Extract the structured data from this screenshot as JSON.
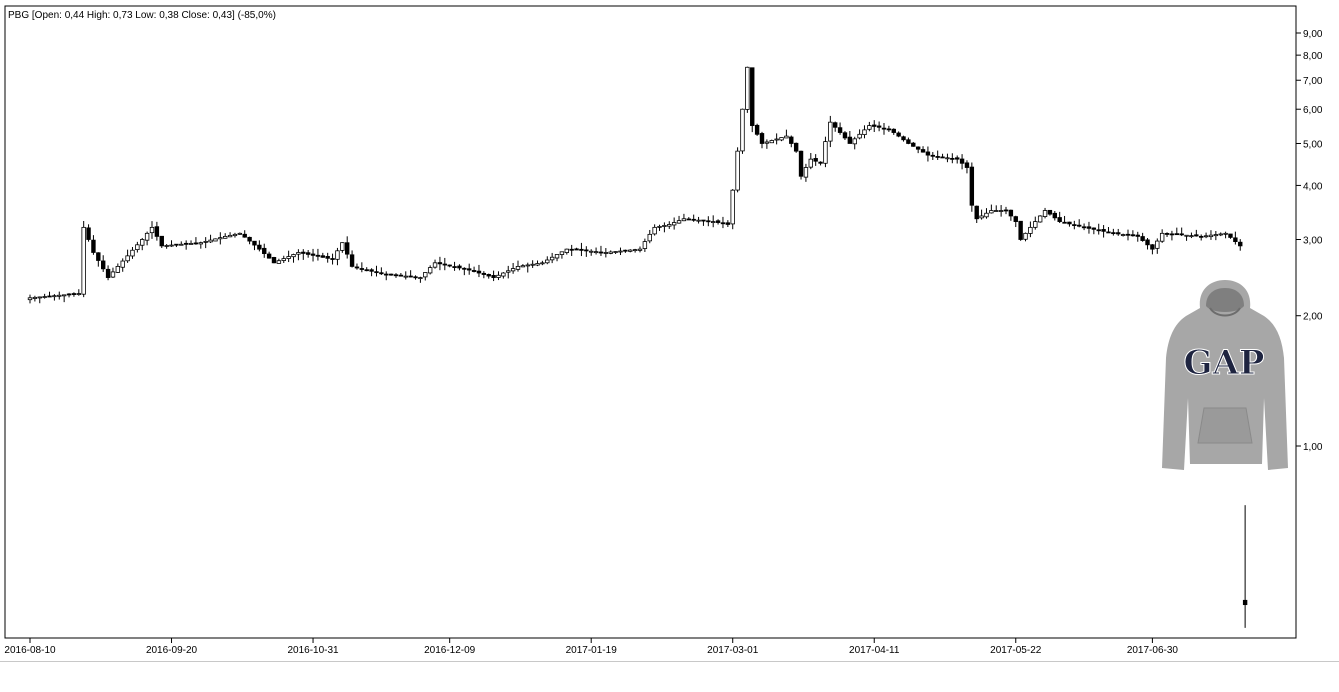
{
  "chart_data": {
    "type": "candlestick",
    "title": "PBG [Open: 0,44  High: 0,73  Low: 0,38  Close: 0,43] (-85,0%)",
    "y_scale": "log",
    "ylim": [
      0.38,
      10.2
    ],
    "y_ticks": [
      {
        "value": 9,
        "label": "9,00"
      },
      {
        "value": 8,
        "label": "8,00"
      },
      {
        "value": 7,
        "label": "7,00"
      },
      {
        "value": 6,
        "label": "6,00"
      },
      {
        "value": 5,
        "label": "5,00"
      },
      {
        "value": 4,
        "label": "4,00"
      },
      {
        "value": 3,
        "label": "3,00"
      },
      {
        "value": 2,
        "label": "2,00"
      },
      {
        "value": 1,
        "label": "1,00"
      }
    ],
    "x_ticks": [
      "2016-08-10",
      "2016-09-20",
      "2016-10-31",
      "2016-12-09",
      "2017-01-19",
      "2017-03-01",
      "2017-04-11",
      "2017-05-22",
      "2017-06-30"
    ],
    "x_tick_index": [
      0,
      29,
      58,
      86,
      115,
      144,
      173,
      202,
      230
    ],
    "legend": "none",
    "grid": false,
    "image": {
      "name": "gap-hoodie-image",
      "text": "GAP"
    },
    "price_path": [
      [
        0,
        2.2
      ],
      [
        10,
        2.25
      ],
      [
        11,
        3.2
      ],
      [
        13,
        2.8
      ],
      [
        16,
        2.45
      ],
      [
        20,
        2.75
      ],
      [
        23,
        3.0
      ],
      [
        25,
        3.2
      ],
      [
        27,
        2.9
      ],
      [
        35,
        2.95
      ],
      [
        40,
        3.05
      ],
      [
        43,
        3.1
      ],
      [
        47,
        2.85
      ],
      [
        50,
        2.65
      ],
      [
        55,
        2.8
      ],
      [
        62,
        2.7
      ],
      [
        64,
        2.95
      ],
      [
        66,
        2.6
      ],
      [
        72,
        2.5
      ],
      [
        80,
        2.45
      ],
      [
        83,
        2.65
      ],
      [
        90,
        2.55
      ],
      [
        95,
        2.45
      ],
      [
        100,
        2.6
      ],
      [
        105,
        2.65
      ],
      [
        110,
        2.85
      ],
      [
        118,
        2.8
      ],
      [
        125,
        2.85
      ],
      [
        128,
        3.2
      ],
      [
        131,
        3.25
      ],
      [
        134,
        3.35
      ],
      [
        140,
        3.3
      ],
      [
        143,
        3.25
      ],
      [
        144,
        3.9
      ],
      [
        145,
        4.8
      ],
      [
        146,
        6.0
      ],
      [
        147,
        7.5
      ],
      [
        148,
        5.5
      ],
      [
        150,
        5.0
      ],
      [
        155,
        5.2
      ],
      [
        157,
        4.8
      ],
      [
        158,
        4.2
      ],
      [
        160,
        4.6
      ],
      [
        162,
        4.5
      ],
      [
        164,
        5.6
      ],
      [
        166,
        5.3
      ],
      [
        168,
        5.0
      ],
      [
        172,
        5.5
      ],
      [
        176,
        5.4
      ],
      [
        180,
        5.0
      ],
      [
        184,
        4.7
      ],
      [
        190,
        4.6
      ],
      [
        192,
        4.4
      ],
      [
        193,
        3.6
      ],
      [
        194,
        3.35
      ],
      [
        197,
        3.5
      ],
      [
        200,
        3.5
      ],
      [
        202,
        3.3
      ],
      [
        203,
        3.0
      ],
      [
        205,
        3.2
      ],
      [
        208,
        3.5
      ],
      [
        211,
        3.3
      ],
      [
        216,
        3.2
      ],
      [
        222,
        3.1
      ],
      [
        227,
        3.05
      ],
      [
        230,
        2.85
      ],
      [
        232,
        3.1
      ],
      [
        240,
        3.05
      ],
      [
        245,
        3.1
      ],
      [
        248,
        2.9
      ]
    ],
    "last_candle": {
      "open": 0.44,
      "high": 0.73,
      "low": 0.38,
      "close": 0.43
    }
  }
}
